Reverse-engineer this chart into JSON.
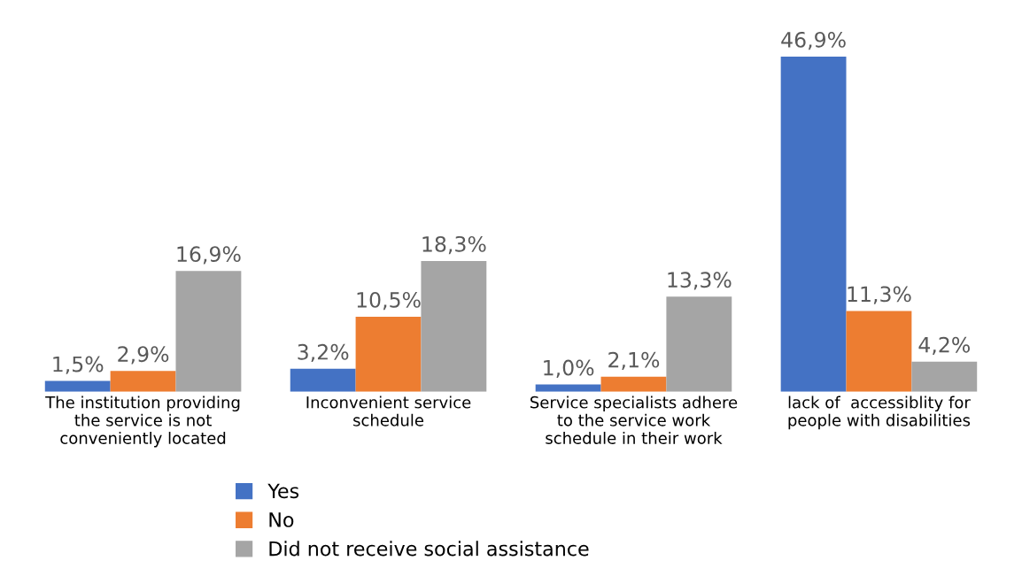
{
  "chart_data": {
    "type": "bar",
    "categories": [
      "The institution providing\nthe service is not\nconveniently located",
      "Inconvenient service\nschedule",
      "Service specialists adhere\nto the service work\nschedule in their work",
      "lack of  accessiblity for\npeople with disabilities"
    ],
    "series": [
      {
        "name": "Yes",
        "color": "#4472c4",
        "values": [
          1.5,
          3.2,
          1.0,
          46.9
        ],
        "value_labels": [
          "1,5%",
          "3,2%",
          "1,0%",
          "46,9%"
        ]
      },
      {
        "name": "No",
        "color": "#ed7d31",
        "values": [
          2.9,
          10.5,
          2.1,
          11.3
        ],
        "value_labels": [
          "2,9%",
          "10,5%",
          "2,1%",
          "11,3%"
        ]
      },
      {
        "name": "Did not receive social assistance",
        "color": "#a5a5a5",
        "values": [
          16.9,
          18.3,
          13.3,
          4.2
        ],
        "value_labels": [
          "16,9%",
          "18,3%",
          "13,3%",
          "4,2%"
        ]
      }
    ],
    "legend": "bottom",
    "grid": false
  }
}
